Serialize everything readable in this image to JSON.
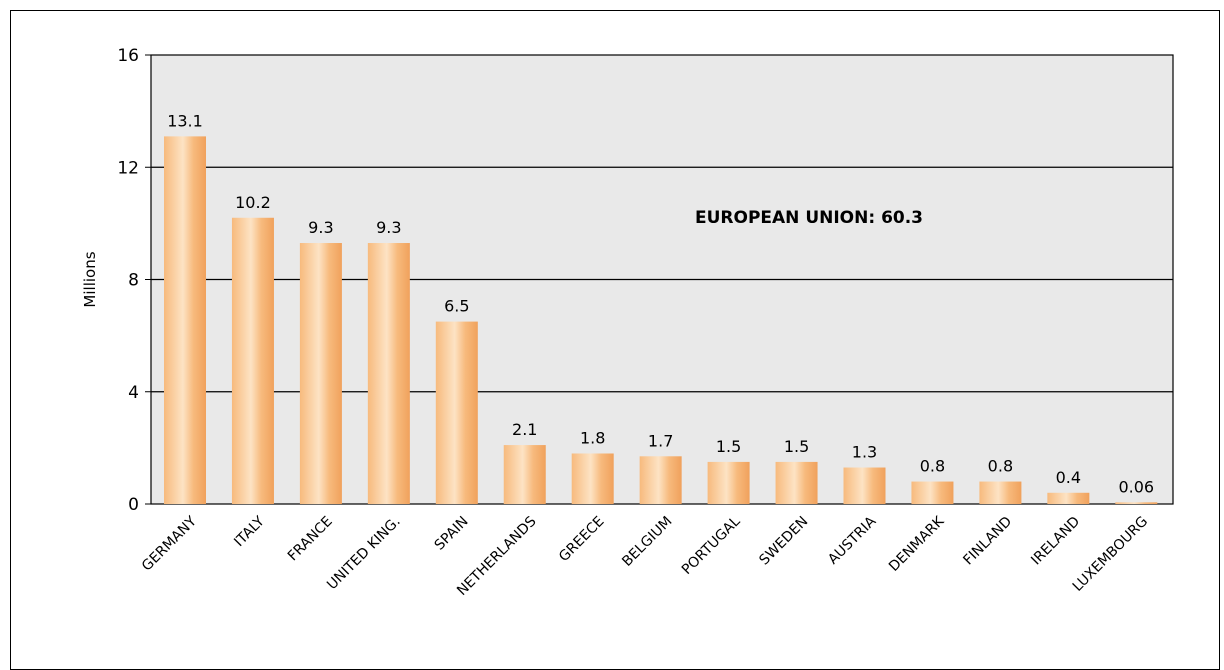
{
  "chart_data": {
    "type": "bar",
    "ylabel": "Millions",
    "ylim": [
      0,
      16
    ],
    "yticks": [
      0,
      4,
      8,
      12,
      16
    ],
    "grid": true,
    "annotation": "EUROPEAN UNION: 60.3",
    "categories": [
      "GERMANY",
      "ITALY",
      "FRANCE",
      "UNITED KING.",
      "SPAIN",
      "NETHERLANDS",
      "GREECE",
      "BELGIUM",
      "PORTUGAL",
      "SWEDEN",
      "AUSTRIA",
      "DENMARK",
      "FINLAND",
      "IRELAND",
      "LUXEMBOURG"
    ],
    "values": [
      13.1,
      10.2,
      9.3,
      9.3,
      6.5,
      2.1,
      1.8,
      1.7,
      1.5,
      1.5,
      1.3,
      0.8,
      0.8,
      0.4,
      0.06
    ],
    "value_labels": [
      "13.1",
      "10.2",
      "9.3",
      "9.3",
      "6.5",
      "2.1",
      "1.8",
      "1.7",
      "1.5",
      "1.5",
      "1.3",
      "0.8",
      "0.8",
      "0.4",
      "0.06"
    ],
    "colors": {
      "plot_bg": "#e9e9e9",
      "bar_light": "#fde3c4",
      "bar_mid": "#f7ba7d",
      "bar_dark": "#f0a15c"
    }
  }
}
